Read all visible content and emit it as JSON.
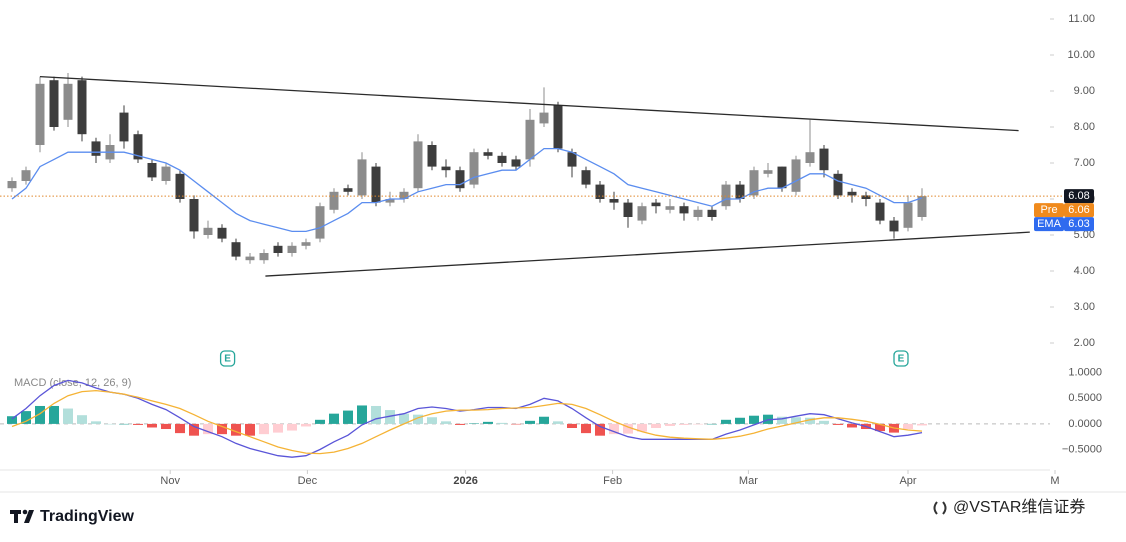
{
  "chart_data": [
    {
      "type": "candlestick",
      "xlim": [
        0,
        75
      ],
      "xticks": [
        {
          "value": 11.3,
          "label": "Nov"
        },
        {
          "value": 21.1,
          "label": "Dec"
        },
        {
          "value": 32.4,
          "label": "2026"
        },
        {
          "value": 42.9,
          "label": "Feb"
        },
        {
          "value": 52.6,
          "label": "Mar"
        },
        {
          "value": 64,
          "label": "Apr"
        },
        {
          "value": 74.5,
          "label": "M"
        }
      ],
      "ylim": [
        1.5,
        11.5
      ],
      "yticks": [
        {
          "value": 2,
          "label": "2.00"
        },
        {
          "value": 3,
          "label": "3.00"
        },
        {
          "value": 4,
          "label": "4.00"
        },
        {
          "value": 5,
          "label": "5.00"
        },
        {
          "value": 6,
          "label": "6.00"
        },
        {
          "value": 7,
          "label": "7.00"
        },
        {
          "value": 8,
          "label": "8.00"
        },
        {
          "value": 9,
          "label": "9.00"
        },
        {
          "value": 10,
          "label": "10.00"
        },
        {
          "value": 11,
          "label": "11.00"
        }
      ],
      "up_color": "#8c8c8c",
      "down_color": "#3d3d3d",
      "open": [
        6.3,
        6.5,
        7.5,
        9.3,
        8.2,
        9.3,
        7.6,
        7.1,
        8.4,
        7.8,
        7.0,
        6.5,
        6.7,
        6.0,
        5.0,
        5.2,
        4.8,
        4.3,
        4.3,
        4.7,
        4.5,
        4.7,
        4.9,
        5.7,
        6.3,
        6.1,
        6.9,
        5.9,
        6.0,
        6.3,
        7.5,
        6.9,
        6.8,
        6.4,
        7.3,
        7.2,
        7.1,
        7.1,
        8.1,
        8.6,
        7.3,
        6.8,
        6.4,
        6.0,
        5.9,
        5.4,
        5.9,
        5.7,
        5.8,
        5.5,
        5.7,
        5.8,
        6.4,
        6.1,
        6.7,
        6.9,
        6.2,
        7.0,
        7.4,
        6.7,
        6.2,
        6.1,
        5.9,
        5.4,
        5.2,
        5.5
      ],
      "high": [
        6.6,
        6.9,
        9.4,
        9.4,
        9.5,
        9.4,
        7.7,
        7.8,
        8.6,
        7.9,
        7.1,
        7.0,
        6.8,
        6.1,
        5.4,
        5.3,
        4.9,
        4.5,
        4.6,
        4.8,
        4.8,
        4.9,
        5.9,
        6.3,
        6.4,
        7.3,
        7.0,
        6.2,
        6.3,
        7.8,
        7.6,
        7.1,
        6.9,
        7.4,
        7.4,
        7.3,
        7.2,
        8.5,
        9.1,
        8.7,
        7.4,
        6.9,
        6.5,
        6.2,
        6.0,
        5.9,
        6.0,
        6.0,
        5.9,
        5.8,
        5.8,
        6.5,
        6.5,
        6.9,
        7.0,
        6.9,
        7.2,
        8.2,
        7.5,
        6.8,
        6.3,
        6.2,
        6.0,
        5.5,
        6.1,
        6.3
      ],
      "low": [
        6.2,
        6.4,
        7.3,
        7.9,
        8.0,
        7.6,
        7.0,
        7.0,
        7.4,
        7.0,
        6.5,
        6.4,
        5.9,
        4.9,
        4.9,
        4.8,
        4.3,
        4.2,
        4.2,
        4.4,
        4.4,
        4.6,
        4.8,
        5.6,
        6.1,
        6.0,
        5.8,
        5.8,
        5.9,
        6.2,
        6.8,
        6.6,
        6.2,
        6.3,
        7.1,
        6.9,
        6.8,
        6.9,
        8.0,
        7.3,
        6.6,
        6.3,
        5.9,
        5.7,
        5.2,
        5.3,
        5.6,
        5.6,
        5.4,
        5.4,
        5.4,
        5.7,
        5.9,
        6.0,
        6.6,
        6.2,
        6.1,
        6.9,
        6.6,
        6.0,
        5.9,
        5.8,
        5.3,
        4.9,
        5.1,
        5.4
      ],
      "close": [
        6.5,
        6.8,
        9.2,
        8.0,
        9.2,
        7.8,
        7.2,
        7.5,
        7.6,
        7.1,
        6.6,
        6.9,
        6.0,
        5.1,
        5.2,
        4.9,
        4.4,
        4.4,
        4.5,
        4.5,
        4.7,
        4.8,
        5.8,
        6.2,
        6.2,
        7.1,
        5.9,
        6.0,
        6.2,
        7.6,
        6.9,
        6.8,
        6.3,
        7.3,
        7.2,
        7.0,
        6.9,
        8.2,
        8.4,
        7.4,
        6.9,
        6.4,
        6.0,
        5.9,
        5.5,
        5.8,
        5.8,
        5.8,
        5.6,
        5.7,
        5.5,
        6.4,
        6.0,
        6.8,
        6.8,
        6.3,
        7.1,
        7.3,
        6.8,
        6.1,
        6.1,
        6.0,
        5.4,
        5.1,
        5.9,
        6.08
      ],
      "ema": {
        "name": "EMA",
        "color": "#5b8def",
        "values": [
          6.0,
          6.3,
          6.9,
          7.1,
          7.3,
          7.3,
          7.3,
          7.3,
          7.3,
          7.2,
          7.1,
          7.0,
          6.8,
          6.5,
          6.2,
          5.9,
          5.6,
          5.4,
          5.3,
          5.2,
          5.1,
          5.1,
          5.2,
          5.4,
          5.6,
          5.9,
          5.9,
          6.0,
          6.0,
          6.2,
          6.3,
          6.4,
          6.4,
          6.6,
          6.7,
          6.8,
          6.8,
          7.1,
          7.4,
          7.4,
          7.3,
          7.1,
          6.9,
          6.7,
          6.4,
          6.3,
          6.2,
          6.1,
          6.0,
          5.9,
          5.8,
          6.0,
          6.0,
          6.2,
          6.3,
          6.3,
          6.5,
          6.7,
          6.7,
          6.5,
          6.4,
          6.3,
          6.1,
          5.9,
          5.9,
          6.03
        ]
      },
      "last_price": 6.08,
      "last_price_color": "#e0882c",
      "price_labels": [
        {
          "name": "Pre",
          "value": 6.06,
          "color": "#f08a1c"
        },
        {
          "name": "EMA",
          "value": 6.03,
          "color": "#2f6bef"
        }
      ],
      "trendlines": [
        {
          "color": "#2b2b2b",
          "points": [
            [
              2,
              9.4
            ],
            [
              71.9,
              7.9
            ]
          ]
        },
        {
          "color": "#2b2b2b",
          "points": [
            [
              18.1,
              3.86
            ],
            [
              72.7,
              5.08
            ]
          ]
        }
      ],
      "events": [
        {
          "x": 15.4,
          "label": "E"
        },
        {
          "x": 63.5,
          "label": "E"
        }
      ]
    },
    {
      "type": "macd",
      "title": "MACD (close, 12, 26, 9)",
      "ylim": [
        -0.9,
        1.15
      ],
      "yticks": [
        {
          "value": 1,
          "label": "1.0000"
        },
        {
          "value": 0.5,
          "label": "0.5000"
        },
        {
          "value": 0,
          "label": "0.0000"
        },
        {
          "value": -0.5,
          "label": "−0.5000"
        }
      ],
      "zero_line": true,
      "histogram": {
        "colors": [
          "#26a69a",
          "#b2dfdb",
          "#ef5350",
          "#ffcdd2"
        ],
        "values": [
          0.15,
          0.25,
          0.35,
          0.35,
          0.3,
          0.17,
          0.05,
          0.0,
          0.0,
          -0.02,
          -0.07,
          -0.1,
          -0.18,
          -0.23,
          -0.2,
          -0.2,
          -0.23,
          -0.23,
          -0.2,
          -0.17,
          -0.13,
          -0.05,
          0.08,
          0.2,
          0.26,
          0.36,
          0.35,
          0.27,
          0.2,
          0.18,
          0.13,
          0.05,
          -0.02,
          0.01,
          0.04,
          0.02,
          -0.01,
          0.06,
          0.14,
          0.05,
          -0.08,
          -0.18,
          -0.23,
          -0.2,
          -0.19,
          -0.15,
          -0.08,
          -0.04,
          -0.02,
          -0.01,
          0.0,
          0.08,
          0.12,
          0.16,
          0.18,
          0.14,
          0.13,
          0.12,
          0.06,
          -0.02,
          -0.07,
          -0.1,
          -0.14,
          -0.17,
          -0.1,
          -0.03
        ]
      },
      "series": [
        {
          "color": "#5a55d8",
          "values": [
            0.1,
            0.3,
            0.55,
            0.75,
            0.85,
            0.8,
            0.7,
            0.62,
            0.58,
            0.5,
            0.38,
            0.28,
            0.12,
            -0.05,
            -0.15,
            -0.25,
            -0.38,
            -0.48,
            -0.55,
            -0.62,
            -0.65,
            -0.62,
            -0.5,
            -0.35,
            -0.22,
            -0.02,
            0.1,
            0.15,
            0.2,
            0.3,
            0.33,
            0.3,
            0.25,
            0.28,
            0.32,
            0.32,
            0.3,
            0.38,
            0.5,
            0.45,
            0.3,
            0.12,
            -0.05,
            -0.15,
            -0.25,
            -0.3,
            -0.3,
            -0.3,
            -0.3,
            -0.3,
            -0.3,
            -0.2,
            -0.12,
            -0.02,
            0.08,
            0.1,
            0.15,
            0.2,
            0.18,
            0.1,
            0.02,
            -0.05,
            -0.15,
            -0.25,
            -0.22,
            -0.17
          ]
        },
        {
          "color": "#f5b335",
          "values": [
            -0.05,
            0.05,
            0.2,
            0.4,
            0.55,
            0.63,
            0.65,
            0.62,
            0.58,
            0.52,
            0.45,
            0.38,
            0.3,
            0.18,
            0.05,
            -0.05,
            -0.15,
            -0.25,
            -0.35,
            -0.45,
            -0.52,
            -0.57,
            -0.58,
            -0.55,
            -0.48,
            -0.38,
            -0.25,
            -0.12,
            0.0,
            0.12,
            0.2,
            0.25,
            0.27,
            0.27,
            0.28,
            0.3,
            0.31,
            0.32,
            0.36,
            0.4,
            0.38,
            0.3,
            0.18,
            0.05,
            -0.06,
            -0.15,
            -0.22,
            -0.26,
            -0.28,
            -0.29,
            -0.3,
            -0.28,
            -0.24,
            -0.18,
            -0.1,
            -0.04,
            0.02,
            0.08,
            0.12,
            0.12,
            0.09,
            0.05,
            -0.01,
            -0.08,
            -0.12,
            -0.14
          ]
        }
      ]
    }
  ],
  "footer": {
    "brand": "TradingView",
    "watermark": "@VSTAR维信证券"
  }
}
